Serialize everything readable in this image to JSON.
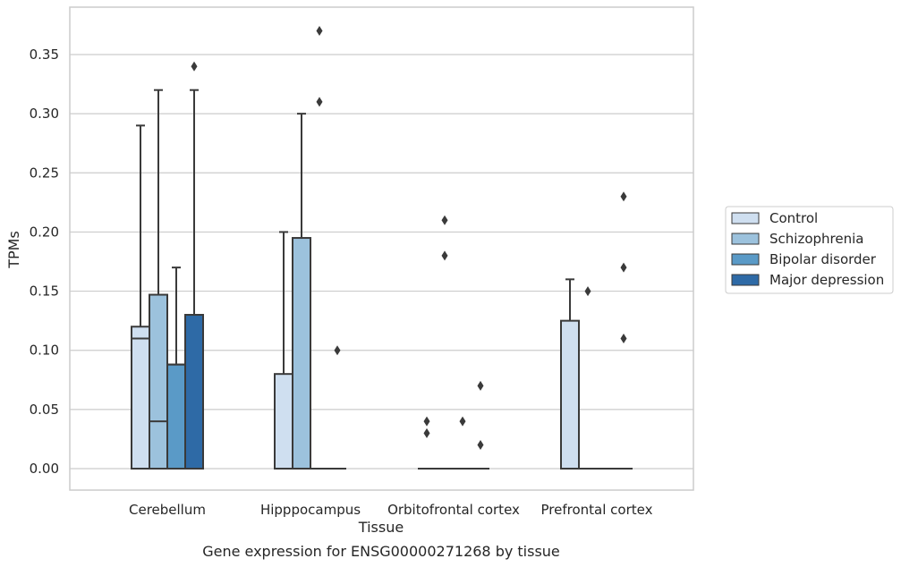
{
  "chart_data": {
    "type": "box",
    "xlabel": "Tissue",
    "ylabel": "TPMs",
    "caption": "Gene expression for ENSG00000271268 by tissue",
    "ylim": [
      -0.018,
      0.388
    ],
    "yticks": [
      "0.00",
      "0.05",
      "0.10",
      "0.15",
      "0.20",
      "0.25",
      "0.30",
      "0.35"
    ],
    "grid": "horizontal",
    "legend_position": "right",
    "categories": [
      "Cerebellum",
      "Hipppocampus",
      "Orbitofrontal cortex",
      "Prefrontal cortex"
    ],
    "series": [
      {
        "name": "Control",
        "color": "#cfdff0",
        "boxes": [
          {
            "q1": 0.0,
            "median": 0.11,
            "q3": 0.12,
            "whisker_low": 0.0,
            "whisker_high": 0.29,
            "outliers": []
          },
          {
            "q1": 0.0,
            "median": 0.0,
            "q3": 0.08,
            "whisker_low": 0.0,
            "whisker_high": 0.2,
            "outliers": []
          },
          {
            "q1": 0.0,
            "median": 0.0,
            "q3": 0.0,
            "whisker_low": 0.0,
            "whisker_high": 0.0,
            "outliers": [
              0.03,
              0.04
            ]
          },
          {
            "q1": 0.0,
            "median": 0.0,
            "q3": 0.125,
            "whisker_low": 0.0,
            "whisker_high": 0.16,
            "outliers": []
          }
        ]
      },
      {
        "name": "Schizophrenia",
        "color": "#9cc2dd",
        "boxes": [
          {
            "q1": 0.0,
            "median": 0.04,
            "q3": 0.147,
            "whisker_low": 0.0,
            "whisker_high": 0.32,
            "outliers": []
          },
          {
            "q1": 0.0,
            "median": 0.0,
            "q3": 0.195,
            "whisker_low": 0.0,
            "whisker_high": 0.3,
            "outliers": []
          },
          {
            "q1": 0.0,
            "median": 0.0,
            "q3": 0.0,
            "whisker_low": 0.0,
            "whisker_high": 0.0,
            "outliers": [
              0.21,
              0.18
            ]
          },
          {
            "q1": 0.0,
            "median": 0.0,
            "q3": 0.0,
            "whisker_low": 0.0,
            "whisker_high": 0.0,
            "outliers": [
              0.15
            ]
          }
        ]
      },
      {
        "name": "Bipolar disorder",
        "color": "#5a9ac7",
        "boxes": [
          {
            "q1": 0.0,
            "median": 0.088,
            "q3": 0.088,
            "whisker_low": 0.0,
            "whisker_high": 0.17,
            "outliers": []
          },
          {
            "q1": 0.0,
            "median": 0.0,
            "q3": 0.0,
            "whisker_low": 0.0,
            "whisker_high": 0.0,
            "outliers": [
              0.37,
              0.31
            ]
          },
          {
            "q1": 0.0,
            "median": 0.0,
            "q3": 0.0,
            "whisker_low": 0.0,
            "whisker_high": 0.0,
            "outliers": [
              0.04
            ]
          },
          {
            "q1": 0.0,
            "median": 0.0,
            "q3": 0.0,
            "whisker_low": 0.0,
            "whisker_high": 0.0,
            "outliers": []
          }
        ]
      },
      {
        "name": "Major depression",
        "color": "#2e6aa6",
        "boxes": [
          {
            "q1": 0.0,
            "median": 0.13,
            "q3": 0.13,
            "whisker_low": 0.0,
            "whisker_high": 0.32,
            "outliers": [
              0.34
            ]
          },
          {
            "q1": 0.0,
            "median": 0.0,
            "q3": 0.0,
            "whisker_low": 0.0,
            "whisker_high": 0.0,
            "outliers": [
              0.1
            ]
          },
          {
            "q1": 0.0,
            "median": 0.0,
            "q3": 0.0,
            "whisker_low": 0.0,
            "whisker_high": 0.0,
            "outliers": [
              0.07,
              0.02
            ]
          },
          {
            "q1": 0.0,
            "median": 0.0,
            "q3": 0.0,
            "whisker_low": 0.0,
            "whisker_high": 0.0,
            "outliers": [
              0.23,
              0.17,
              0.11
            ]
          }
        ]
      }
    ]
  }
}
